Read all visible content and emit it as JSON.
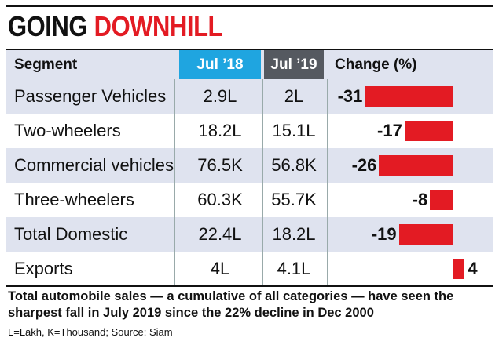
{
  "title": {
    "word1": "GOING",
    "word2": "DOWNHILL"
  },
  "columns": {
    "segment": "Segment",
    "jul18": "Jul ’18",
    "jul19": "Jul ’19",
    "change": "Change (%)"
  },
  "colors": {
    "accent_red": "#e31b23",
    "jul18_header": "#1fa5e0",
    "jul19_header": "#555960",
    "row_shade": "#dfe3ef"
  },
  "chart_data": {
    "type": "bar",
    "categories": [
      "Passenger Vehicles",
      "Two-wheelers",
      "Commercial vehicles",
      "Three-wheelers",
      "Total Domestic",
      "Exports"
    ],
    "values": [
      -31,
      -17,
      -26,
      -8,
      -19,
      4
    ],
    "value_labels": [
      "-31",
      "-17",
      "-26",
      "-8",
      "-19",
      "4"
    ],
    "xlabel": "Change (%)"
  },
  "rows": [
    {
      "segment": "Passenger Vehicles",
      "jul18": "2.9L",
      "jul19": "2L"
    },
    {
      "segment": "Two-wheelers",
      "jul18": "18.2L",
      "jul19": "15.1L"
    },
    {
      "segment": "Commercial vehicles",
      "jul18": "76.5K",
      "jul19": "56.8K"
    },
    {
      "segment": "Three-wheelers",
      "jul18": "60.3K",
      "jul19": "55.7K"
    },
    {
      "segment": "Total Domestic",
      "jul18": "22.4L",
      "jul19": "18.2L"
    },
    {
      "segment": "Exports",
      "jul18": "4L",
      "jul19": "4.1L"
    }
  ],
  "note": "Total automobile sales — a cumulative of all categories — have seen the sharpest fall in July 2019 since the 22% decline in Dec 2000",
  "source": "L=Lakh, K=Thousand; Source: Siam"
}
